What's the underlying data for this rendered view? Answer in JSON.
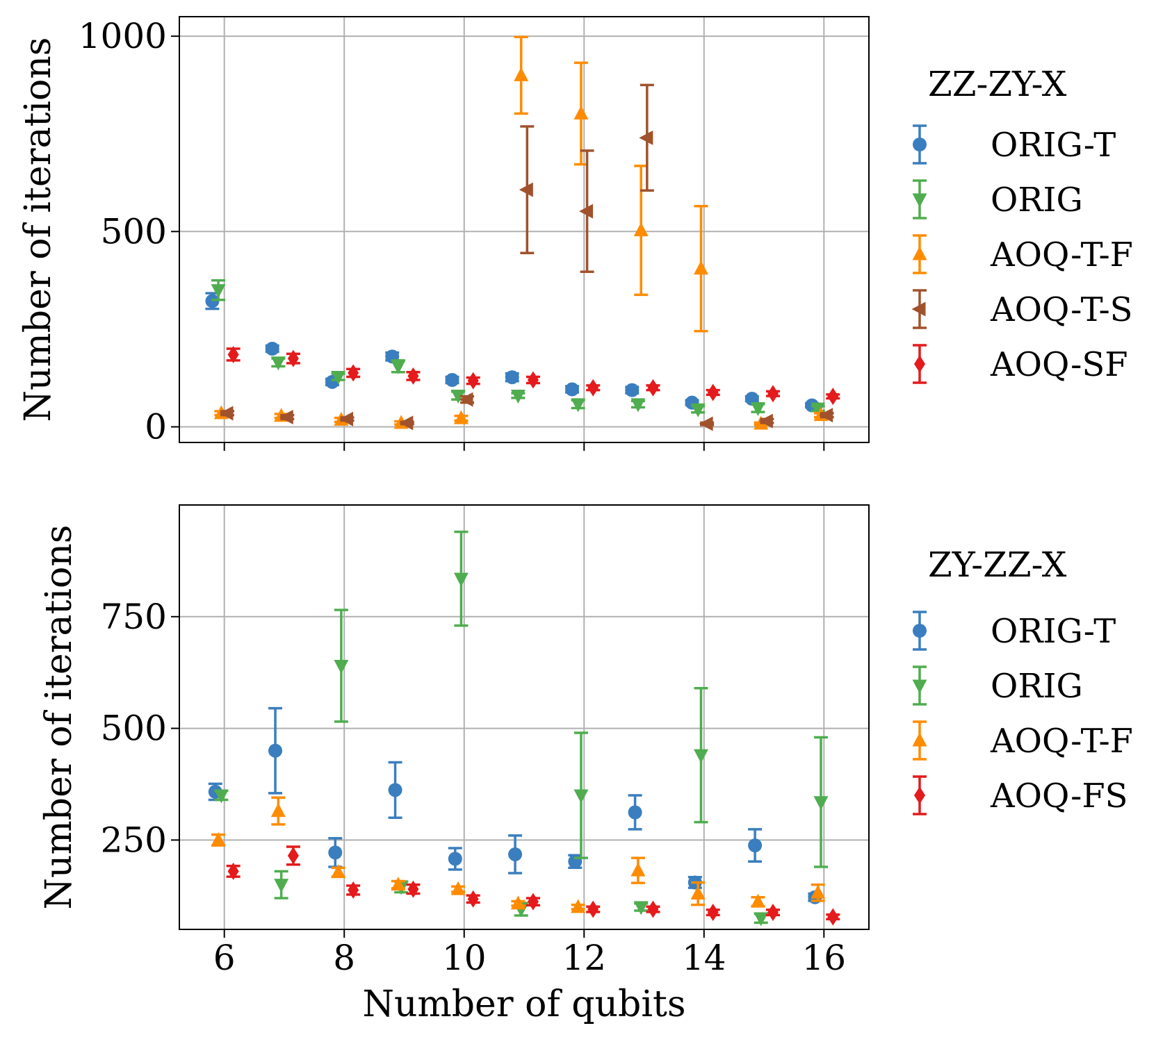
{
  "chart_data": [
    {
      "type": "scatter",
      "error_bars": true,
      "xlabel": "",
      "ylabel": "Number of iterations",
      "xlim": [
        5.25,
        16.75
      ],
      "ylim": [
        -40,
        1050
      ],
      "xticks": [
        6,
        8,
        10,
        12,
        14,
        16
      ],
      "xtick_labels_visible": false,
      "yticks": [
        0,
        500,
        1000
      ],
      "ytick_labels": [
        "0",
        "500",
        "1000"
      ],
      "grid": true,
      "legend": {
        "title": "ZZ-ZY-X",
        "placement": "outside-right"
      },
      "series": [
        {
          "name": "ORIG-T",
          "marker": "circle",
          "color": "#3a7ebf",
          "x": [
            5.8,
            6.8,
            7.8,
            8.8,
            9.8,
            10.8,
            11.8,
            12.8,
            13.8,
            14.8,
            15.8
          ],
          "y": [
            322,
            200,
            115,
            180,
            120,
            127,
            96,
            94,
            62,
            72,
            55
          ],
          "err": [
            20,
            8,
            8,
            10,
            8,
            10,
            8,
            8,
            6,
            6,
            5
          ]
        },
        {
          "name": "ORIG",
          "marker": "triangle-down",
          "color": "#4fad4f",
          "x": [
            5.9,
            6.9,
            7.9,
            8.9,
            9.9,
            10.9,
            11.9,
            12.9,
            13.9,
            14.9,
            15.9
          ],
          "y": [
            350,
            165,
            128,
            155,
            80,
            80,
            58,
            58,
            45,
            48,
            47
          ],
          "err": [
            25,
            10,
            8,
            15,
            10,
            6,
            10,
            8,
            8,
            10,
            6
          ]
        },
        {
          "name": "AOQ-T-F",
          "marker": "triangle-up",
          "color": "#ff8c00",
          "x": [
            5.95,
            6.95,
            7.95,
            8.95,
            9.95,
            10.95,
            11.95,
            12.95,
            13.95,
            14.95,
            15.95
          ],
          "y": [
            35,
            28,
            18,
            10,
            22,
            900,
            802,
            503,
            405,
            8,
            30
          ],
          "err": [
            5,
            5,
            5,
            4,
            6,
            98,
            130,
            165,
            160,
            3,
            5
          ]
        },
        {
          "name": "AOQ-T-S",
          "marker": "triangle-left",
          "color": "#a0522d",
          "x": [
            6.05,
            7.05,
            8.05,
            9.05,
            10.05,
            11.05,
            12.05,
            13.05,
            14.05,
            15.05,
            16.05
          ],
          "y": [
            35,
            25,
            20,
            10,
            70,
            607,
            552,
            740,
            8,
            15,
            30
          ],
          "err": [
            5,
            5,
            4,
            3,
            8,
            162,
            155,
            135,
            3,
            5,
            5
          ]
        },
        {
          "name": "AOQ-SF",
          "marker": "diamond",
          "color": "#e41a1c",
          "x": [
            6.15,
            7.15,
            8.15,
            9.15,
            10.15,
            11.15,
            12.15,
            13.15,
            14.15,
            15.15,
            16.15
          ],
          "y": [
            185,
            175,
            138,
            130,
            118,
            120,
            100,
            100,
            88,
            85,
            78
          ],
          "err": [
            15,
            12,
            10,
            10,
            8,
            8,
            6,
            6,
            6,
            6,
            5
          ]
        }
      ]
    },
    {
      "type": "scatter",
      "error_bars": true,
      "xlabel": "Number of qubits",
      "ylabel": "Number of iterations",
      "xlim": [
        5.25,
        16.75
      ],
      "ylim": [
        50,
        1000
      ],
      "xticks": [
        6,
        8,
        10,
        12,
        14,
        16
      ],
      "xtick_labels": [
        "6",
        "8",
        "10",
        "12",
        "14",
        "16"
      ],
      "yticks": [
        250,
        500,
        750
      ],
      "ytick_labels": [
        "250",
        "500",
        "750"
      ],
      "grid": true,
      "legend": {
        "title": "ZY-ZZ-X",
        "placement": "outside-right"
      },
      "series": [
        {
          "name": "ORIG-T",
          "marker": "circle",
          "color": "#3a7ebf",
          "x": [
            5.85,
            6.85,
            7.85,
            8.85,
            9.85,
            10.85,
            11.85,
            12.85,
            13.85,
            14.85,
            15.85
          ],
          "y": [
            358,
            450,
            222,
            362,
            208,
            218,
            202,
            312,
            155,
            238,
            122
          ],
          "err": [
            18,
            95,
            32,
            62,
            24,
            42,
            14,
            38,
            12,
            36,
            8
          ]
        },
        {
          "name": "ORIG",
          "marker": "triangle-down",
          "color": "#4fad4f",
          "x": [
            5.95,
            6.95,
            7.95,
            8.95,
            9.95,
            10.95,
            11.95,
            12.95,
            13.95,
            14.95,
            15.95
          ],
          "y": [
            350,
            150,
            640,
            145,
            835,
            95,
            350,
            100,
            440,
            75,
            335
          ],
          "err": [
            10,
            30,
            125,
            12,
            105,
            14,
            140,
            8,
            150,
            10,
            145
          ]
        },
        {
          "name": "AOQ-T-F",
          "marker": "triangle-up",
          "color": "#ff8c00",
          "x": [
            5.9,
            6.9,
            7.9,
            8.9,
            9.9,
            10.9,
            11.9,
            12.9,
            13.9,
            14.9,
            15.9
          ],
          "y": [
            250,
            315,
            178,
            150,
            140,
            108,
            100,
            182,
            130,
            112,
            132
          ],
          "err": [
            12,
            30,
            10,
            8,
            6,
            5,
            5,
            28,
            25,
            10,
            18
          ]
        },
        {
          "name": "AOQ-FS",
          "marker": "diamond",
          "color": "#e41a1c",
          "x": [
            6.15,
            7.15,
            8.15,
            9.15,
            10.15,
            11.15,
            12.15,
            13.15,
            14.15,
            15.15,
            16.15
          ],
          "y": [
            180,
            215,
            138,
            140,
            118,
            112,
            95,
            95,
            88,
            88,
            78
          ],
          "err": [
            12,
            20,
            10,
            10,
            8,
            8,
            6,
            6,
            6,
            6,
            5
          ]
        }
      ]
    }
  ]
}
